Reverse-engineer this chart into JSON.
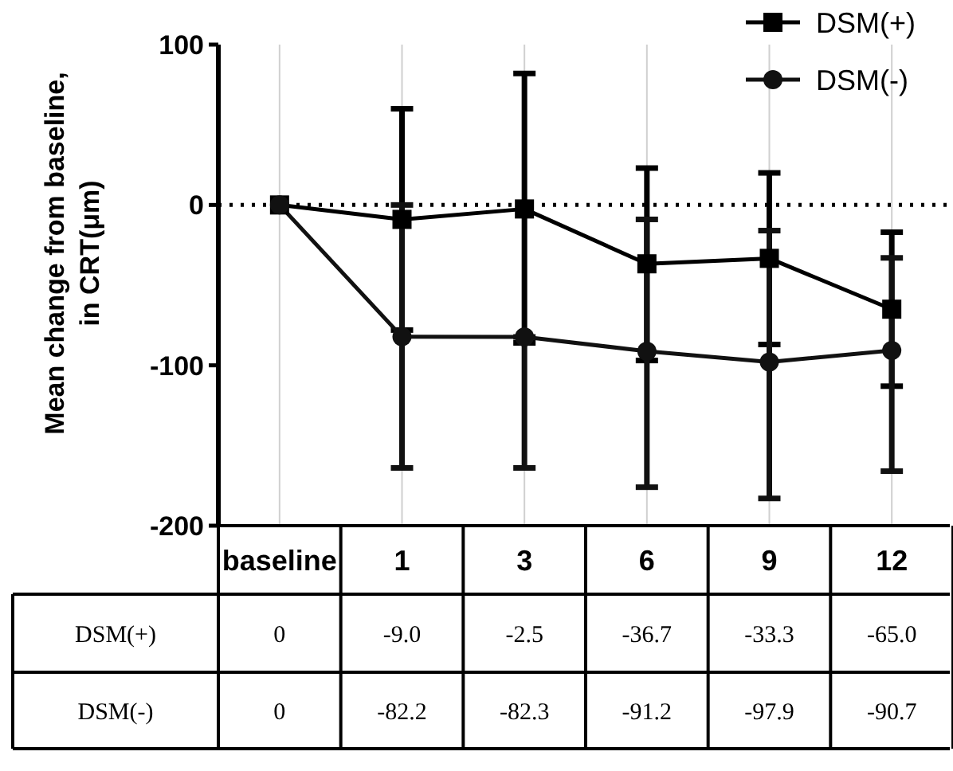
{
  "chart_data": {
    "type": "line",
    "ylabel": "Mean change from baseline, in CRT(μm)",
    "categories": [
      "baseline",
      "1",
      "3",
      "6",
      "9",
      "12"
    ],
    "ylim": [
      -200,
      100
    ],
    "yticks": [
      -200,
      -100,
      0,
      100
    ],
    "grid": "x",
    "legend": "top right",
    "line_style": "solid",
    "ref_lines": [
      {
        "axis": "y",
        "value": 0,
        "line_style": "dotted"
      }
    ],
    "series": [
      {
        "name": "DSM(+)",
        "color": "#000000",
        "marker": "square",
        "values": [
          0,
          -9.0,
          -2.5,
          -36.7,
          -33.3,
          -65.0
        ],
        "value_labels": [
          "0",
          "-9.0",
          "-2.5",
          "-36.7",
          "-33.3",
          "-65.0"
        ],
        "errors": [
          null,
          [
            -78,
            60
          ],
          [
            -86,
            82
          ],
          [
            -97,
            23
          ],
          [
            -87,
            20
          ],
          [
            -113,
            -17
          ]
        ]
      },
      {
        "name": "DSM(-)",
        "color": "#111111",
        "marker": "circle",
        "values": [
          0,
          -82.2,
          -82.3,
          -91.2,
          -97.9,
          -90.7
        ],
        "value_labels": [
          "0",
          "-82.2",
          "-82.3",
          "-91.2",
          "-97.9",
          "-90.7"
        ],
        "errors": [
          null,
          [
            -164,
            0
          ],
          [
            -164,
            -82.3
          ],
          [
            -176,
            -9
          ],
          [
            -183,
            -16
          ],
          [
            -166,
            -33
          ]
        ]
      }
    ]
  }
}
